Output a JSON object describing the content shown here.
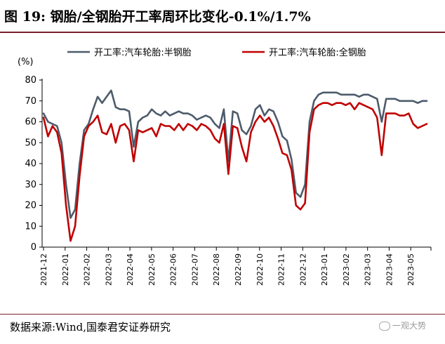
{
  "title": "图 19:  钢胎/全钢胎开工率周环比变化-0.1%/1.7%",
  "source": "数据来源:Wind,国泰君安证券研究",
  "watermark": "一观大势",
  "colors": {
    "semi_steel": "#4d5b6b",
    "all_steel": "#c00000",
    "title_rule": "#7a1f2b"
  },
  "chart_data": {
    "type": "line",
    "ylabel": "(%)",
    "ylim": [
      0,
      80
    ],
    "yticks": [
      0,
      10,
      20,
      30,
      40,
      50,
      60,
      70,
      80
    ],
    "xticks": [
      "2021-12",
      "2022-01",
      "2022-02",
      "2022-03",
      "2022-04",
      "2022-05",
      "2022-06",
      "2022-07",
      "2022-08",
      "2022-09",
      "2022-10",
      "2022-11",
      "2022-12",
      "2023-01",
      "2023-02",
      "2023-03",
      "2023-04",
      "2023-05"
    ],
    "grid": false,
    "legend_position": "top",
    "series": [
      {
        "name": "开工率:汽车轮胎:半钢胎",
        "color": "#4d5b6b",
        "values": [
          64,
          60,
          59,
          58,
          50,
          30,
          14,
          18,
          40,
          56,
          59,
          66,
          72,
          69,
          72,
          75,
          67,
          66,
          66,
          65,
          48,
          60,
          62,
          63,
          66,
          64,
          63,
          65,
          63,
          64,
          65,
          64,
          64,
          63,
          61,
          62,
          63,
          62,
          59,
          57,
          66,
          41,
          65,
          64,
          56,
          54,
          58,
          66,
          68,
          63,
          66,
          65,
          60,
          53,
          51,
          42,
          26,
          24,
          30,
          60,
          70,
          73,
          74,
          74,
          74,
          74,
          73,
          73,
          73,
          73,
          72,
          73,
          73,
          72,
          71,
          60,
          71,
          71,
          71,
          70,
          70,
          70,
          70,
          69,
          70,
          70
        ]
      },
      {
        "name": "开工率:汽车轮胎:全钢胎",
        "color": "#c00000",
        "values": [
          62,
          53,
          58,
          55,
          45,
          20,
          3,
          10,
          34,
          53,
          58,
          60,
          63,
          55,
          54,
          59,
          50,
          58,
          59,
          56,
          41,
          56,
          55,
          56,
          57,
          53,
          59,
          58,
          58,
          56,
          59,
          56,
          59,
          58,
          56,
          59,
          58,
          56,
          52,
          50,
          59,
          35,
          58,
          57,
          48,
          41,
          55,
          60,
          63,
          60,
          62,
          58,
          52,
          45,
          44,
          37,
          20,
          18,
          21,
          55,
          66,
          68,
          69,
          69,
          68,
          69,
          69,
          68,
          69,
          66,
          69,
          68,
          67,
          66,
          62,
          44,
          64,
          64,
          64,
          63,
          63,
          64,
          59,
          57,
          58,
          59
        ]
      }
    ]
  }
}
